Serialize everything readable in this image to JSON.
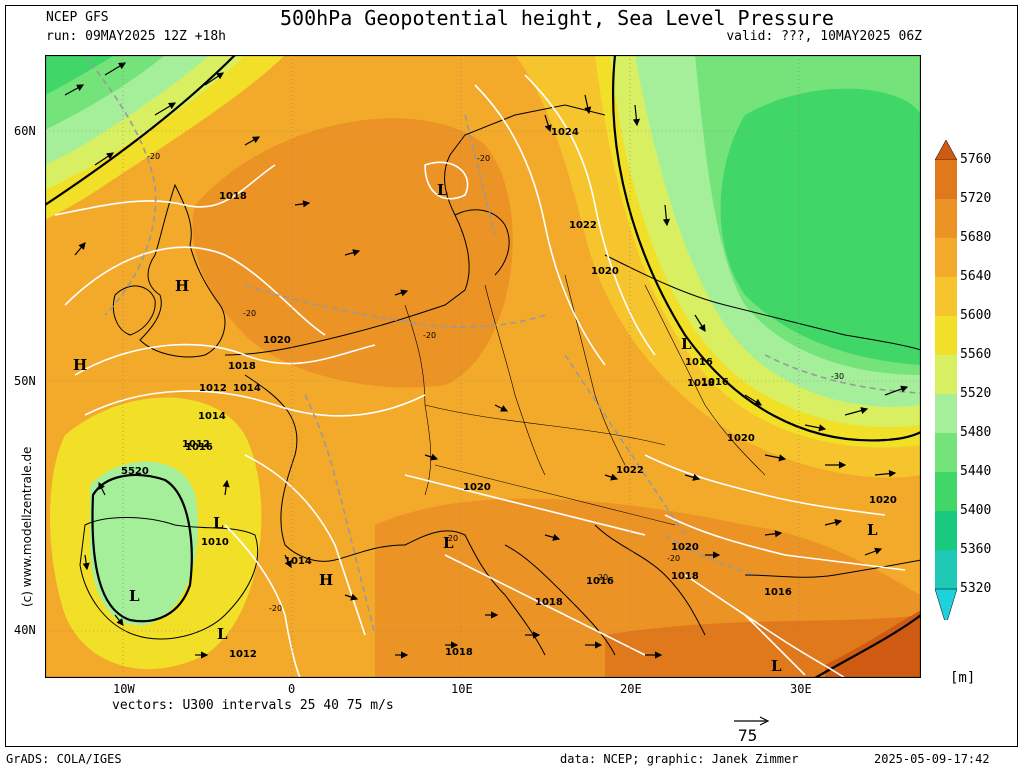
{
  "header": {
    "model": "NCEP GFS",
    "title": "500hPa Geopotential height, Sea Level Pressure",
    "run": "run: 09MAY2025 12Z +18h",
    "valid": "valid: ???, 10MAY2025 06Z"
  },
  "watermark": "(c) www.modellzentrale.de",
  "axes": {
    "lat_labels": [
      "60N",
      "50N",
      "40N"
    ],
    "lon_labels": [
      "10W",
      "0",
      "10E",
      "20E",
      "30E"
    ]
  },
  "vectors_note": "vectors: U300 intervals 25 40 75 m/s",
  "vector_ref": "75",
  "colorbar": {
    "unit": "[m]",
    "levels": [
      "5760",
      "5720",
      "5680",
      "5640",
      "5600",
      "5560",
      "5520",
      "5480",
      "5440",
      "5400",
      "5360",
      "5320"
    ],
    "colors": {
      "top": "#cf5a12",
      "5720": "#e0781c",
      "5680": "#ec9326",
      "5640": "#f3aa2a",
      "5600": "#f6c42c",
      "5560": "#f2df28",
      "5520": "#d8ef62",
      "5480": "#a6ef9a",
      "5440": "#74e37a",
      "5400": "#40d768",
      "5360": "#19c97e",
      "5320": "#1fc9b6",
      "bottom": "#1ed2dd"
    }
  },
  "map_labels": {
    "isobars": [
      "1024",
      "1022",
      "1020",
      "1018",
      "1016",
      "1014",
      "1012",
      "1010",
      "1020",
      "1018",
      "1016",
      "1014",
      "1012",
      "1018",
      "1020",
      "1016",
      "1018",
      "1020",
      "1022",
      "1020",
      "1018",
      "1014",
      "1016",
      "1018",
      "1012",
      "1018",
      "1016",
      "1020"
    ],
    "isotherms": [
      "-20",
      "-20",
      "-20",
      "-20",
      "-20",
      "-20",
      "-20",
      "-20",
      "-30"
    ],
    "height_label": "5520",
    "highs": [
      "H",
      "H",
      "H"
    ],
    "lows": [
      "L",
      "L",
      "L",
      "L",
      "L",
      "L",
      "L",
      "L"
    ]
  },
  "footer": {
    "software": "GrADS: COLA/IGES",
    "credit": "data: NCEP; graphic: Janek Zimmer",
    "timestamp": "2025-05-09-17:42"
  }
}
